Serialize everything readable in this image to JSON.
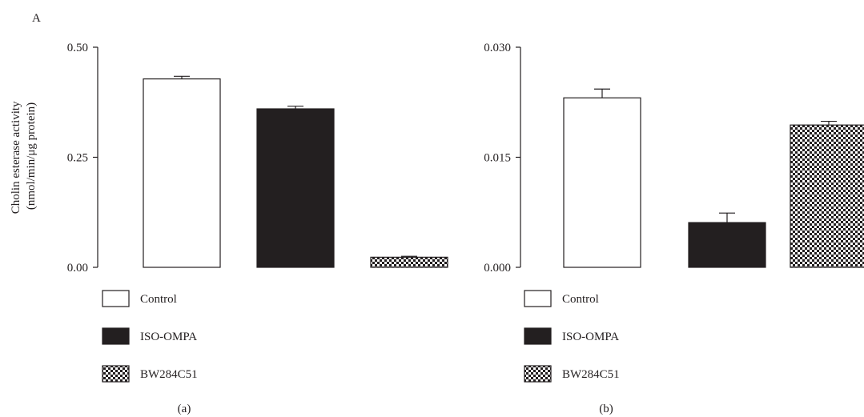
{
  "figure_marker": "A",
  "y_axis_label_lines": [
    "Cholin esterase activity",
    "(nmol/min/μg protein)"
  ],
  "colors": {
    "stroke": "#231f20",
    "control": "#ffffff",
    "iso_ompa": "#231f20",
    "bw284c51": "checkerboard"
  },
  "chart_data": [
    {
      "type": "bar",
      "panel_label": "(a)",
      "categories": [
        "Control",
        "ISO-OMPA",
        "BW284C51"
      ],
      "values": [
        0.428,
        0.36,
        0.023
      ],
      "errors": [
        0.006,
        0.006,
        0.002
      ],
      "fills": [
        "white",
        "black",
        "checkerboard"
      ],
      "ylim": [
        0,
        0.5
      ],
      "yticks": [
        "0.00",
        "0.25",
        "0.50"
      ],
      "ylabel": "Cholin esterase activity (nmol/min/μg protein)",
      "legend": [
        "Control",
        "ISO-OMPA",
        "BW284C51"
      ],
      "legend_position": "below"
    },
    {
      "type": "bar",
      "panel_label": "(b)",
      "categories": [
        "Control",
        "ISO-OMPA",
        "BW284C51"
      ],
      "values": [
        0.0231,
        0.0061,
        0.0194
      ],
      "errors": [
        0.0012,
        0.0013,
        0.0005
      ],
      "fills": [
        "white",
        "black",
        "checkerboard"
      ],
      "ylim": [
        0,
        0.03
      ],
      "yticks": [
        "0.000",
        "0.015",
        "0.030"
      ],
      "ylabel": "",
      "legend": [
        "Control",
        "ISO-OMPA",
        "BW284C51"
      ],
      "legend_position": "below"
    }
  ]
}
